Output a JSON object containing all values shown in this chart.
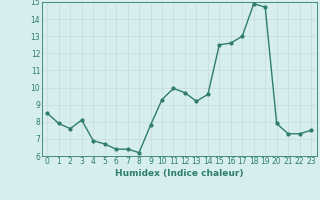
{
  "x": [
    0,
    1,
    2,
    3,
    4,
    5,
    6,
    7,
    8,
    9,
    10,
    11,
    12,
    13,
    14,
    15,
    16,
    17,
    18,
    19,
    20,
    21,
    22,
    23
  ],
  "y": [
    8.5,
    7.9,
    7.6,
    8.1,
    6.9,
    6.7,
    6.4,
    6.4,
    6.2,
    7.8,
    9.3,
    9.95,
    9.7,
    9.2,
    9.6,
    12.5,
    12.6,
    13.0,
    14.9,
    14.7,
    7.9,
    7.3,
    7.3,
    7.5
  ],
  "line_color": "#2e7d6e",
  "marker": "o",
  "markersize": 2,
  "linewidth": 1.0,
  "bg_color": "#d6eeee",
  "grid_color": "#c8dada",
  "xlabel": "Humidex (Indice chaleur)",
  "ylim": [
    6,
    15
  ],
  "xlim": [
    -0.5,
    23.5
  ],
  "yticks": [
    6,
    7,
    8,
    9,
    10,
    11,
    12,
    13,
    14,
    15
  ],
  "xticks": [
    0,
    1,
    2,
    3,
    4,
    5,
    6,
    7,
    8,
    9,
    10,
    11,
    12,
    13,
    14,
    15,
    16,
    17,
    18,
    19,
    20,
    21,
    22,
    23
  ],
  "label_fontsize": 6.5,
  "tick_fontsize": 5.5
}
